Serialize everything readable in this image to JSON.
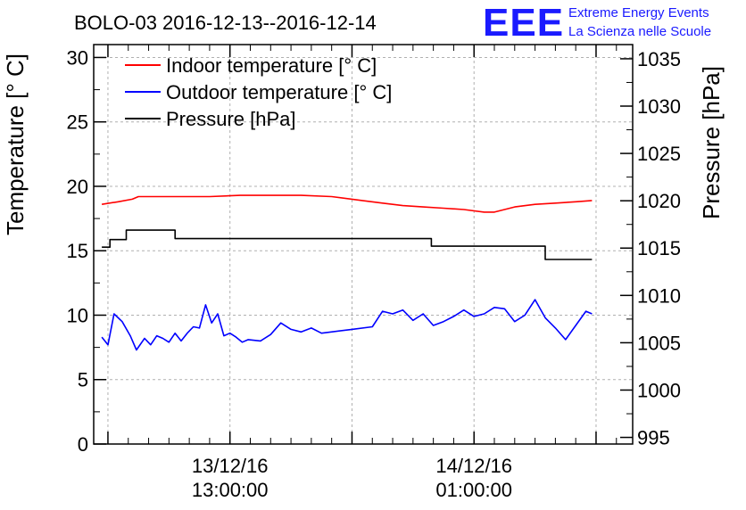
{
  "header": {
    "title": "BOLO-03 2016-12-13--2016-12-14",
    "logo": "EEE",
    "logo_line1": "Extreme Energy Events",
    "logo_line2": "La Scienza nelle Scuole",
    "logo_color": "#1a1aff"
  },
  "chart_data": {
    "type": "line",
    "ylabel_left": "Temperature [° C]",
    "ylabel_right": "Pressure [hPa]",
    "ylim_left": [
      0,
      31
    ],
    "ylim_right": [
      994.3,
      1036.5
    ],
    "yticks_left": [
      0,
      5,
      10,
      15,
      20,
      25,
      30
    ],
    "yticks_right": [
      995,
      1000,
      1005,
      1010,
      1015,
      1020,
      1025,
      1030,
      1035
    ],
    "x_hours_range": [
      -6.7,
      19.8
    ],
    "x_ticklabels": [
      {
        "date": "13/12/16",
        "time": "13:00:00",
        "hour": 0
      },
      {
        "date": "14/12/16",
        "time": "01:00:00",
        "hour": 12
      }
    ],
    "grid": true,
    "legend": "top-left",
    "series": [
      {
        "name": "Indoor temperature [° C]",
        "color": "#ff0000",
        "axis": "left",
        "x": [
          -6.3,
          -5.5,
          -4.8,
          -4.5,
          -3.0,
          -1.0,
          0.5,
          1.5,
          2.5,
          3.5,
          5.0,
          6.5,
          7.5,
          8.5,
          9.5,
          10.5,
          11.5,
          12.5,
          13.0,
          14.0,
          15.0,
          16.0,
          17.0,
          17.8
        ],
        "y": [
          18.6,
          18.8,
          19.0,
          19.2,
          19.2,
          19.2,
          19.3,
          19.3,
          19.3,
          19.3,
          19.2,
          18.9,
          18.7,
          18.5,
          18.4,
          18.3,
          18.2,
          18.0,
          18.0,
          18.4,
          18.6,
          18.7,
          18.8,
          18.9
        ]
      },
      {
        "name": "Outdoor temperature [° C]",
        "color": "#0000ff",
        "axis": "left",
        "x": [
          -6.3,
          -6.0,
          -5.7,
          -5.3,
          -4.9,
          -4.6,
          -4.2,
          -3.9,
          -3.6,
          -3.3,
          -3.0,
          -2.7,
          -2.4,
          -2.1,
          -1.8,
          -1.5,
          -1.2,
          -0.9,
          -0.6,
          -0.3,
          0.0,
          0.3,
          0.6,
          0.9,
          1.5,
          2.0,
          2.5,
          3.0,
          3.5,
          4.0,
          4.5,
          6.0,
          7.0,
          7.5,
          8.0,
          8.5,
          9.0,
          9.5,
          10.0,
          10.5,
          11.0,
          11.5,
          12.0,
          12.5,
          13.0,
          13.5,
          14.0,
          14.5,
          15.0,
          15.5,
          16.0,
          16.5,
          17.0,
          17.5,
          17.8
        ],
        "y": [
          8.3,
          7.7,
          10.1,
          9.5,
          8.4,
          7.3,
          8.2,
          7.7,
          8.4,
          8.2,
          7.9,
          8.6,
          8.0,
          8.6,
          9.1,
          9.0,
          10.8,
          9.4,
          10.1,
          8.4,
          8.6,
          8.3,
          7.9,
          8.1,
          8.0,
          8.5,
          9.4,
          8.9,
          8.7,
          9.0,
          8.6,
          8.9,
          9.1,
          10.3,
          10.1,
          10.4,
          9.6,
          10.1,
          9.2,
          9.5,
          9.9,
          10.4,
          9.9,
          10.1,
          10.6,
          10.5,
          9.5,
          10.0,
          11.2,
          9.8,
          9.0,
          8.1,
          9.2,
          10.3,
          10.1
        ]
      },
      {
        "name": "Pressure [hPa]",
        "color": "#000000",
        "axis": "right",
        "x": [
          -6.3,
          -5.9,
          -5.9,
          -5.1,
          -5.1,
          -4.5,
          -4.5,
          -2.7,
          -2.7,
          9.9,
          9.9,
          13.9,
          13.9,
          15.5,
          15.5,
          17.8
        ],
        "y": [
          1015.1,
          1015.1,
          1015.9,
          1015.9,
          1016.9,
          1016.9,
          1016.9,
          1016.9,
          1016.0,
          1016.0,
          1015.2,
          1015.2,
          1015.2,
          1015.2,
          1013.8,
          1013.8
        ]
      }
    ]
  }
}
